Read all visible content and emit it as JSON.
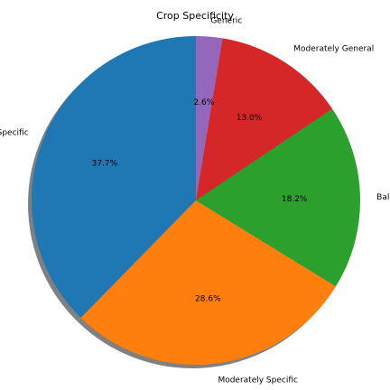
{
  "chart_data": {
    "type": "pie",
    "title": "Crop Specificity",
    "start_angle_deg": 90,
    "direction": "counterclockwise",
    "shadow": true,
    "slices": [
      {
        "label": "Specific",
        "value": 37.7,
        "pct": "37.7%",
        "color": "#1f77b4"
      },
      {
        "label": "Moderately Specific",
        "value": 28.6,
        "pct": "28.6%",
        "color": "#ff7f0e"
      },
      {
        "label": "Balanced",
        "value": 18.2,
        "pct": "18.2%",
        "color": "#2ca02c"
      },
      {
        "label": "Moderately General",
        "value": 13.0,
        "pct": "13.0%",
        "color": "#d62728"
      },
      {
        "label": "Generic",
        "value": 2.6,
        "pct": "2.6%",
        "color": "#9467bd"
      }
    ]
  }
}
